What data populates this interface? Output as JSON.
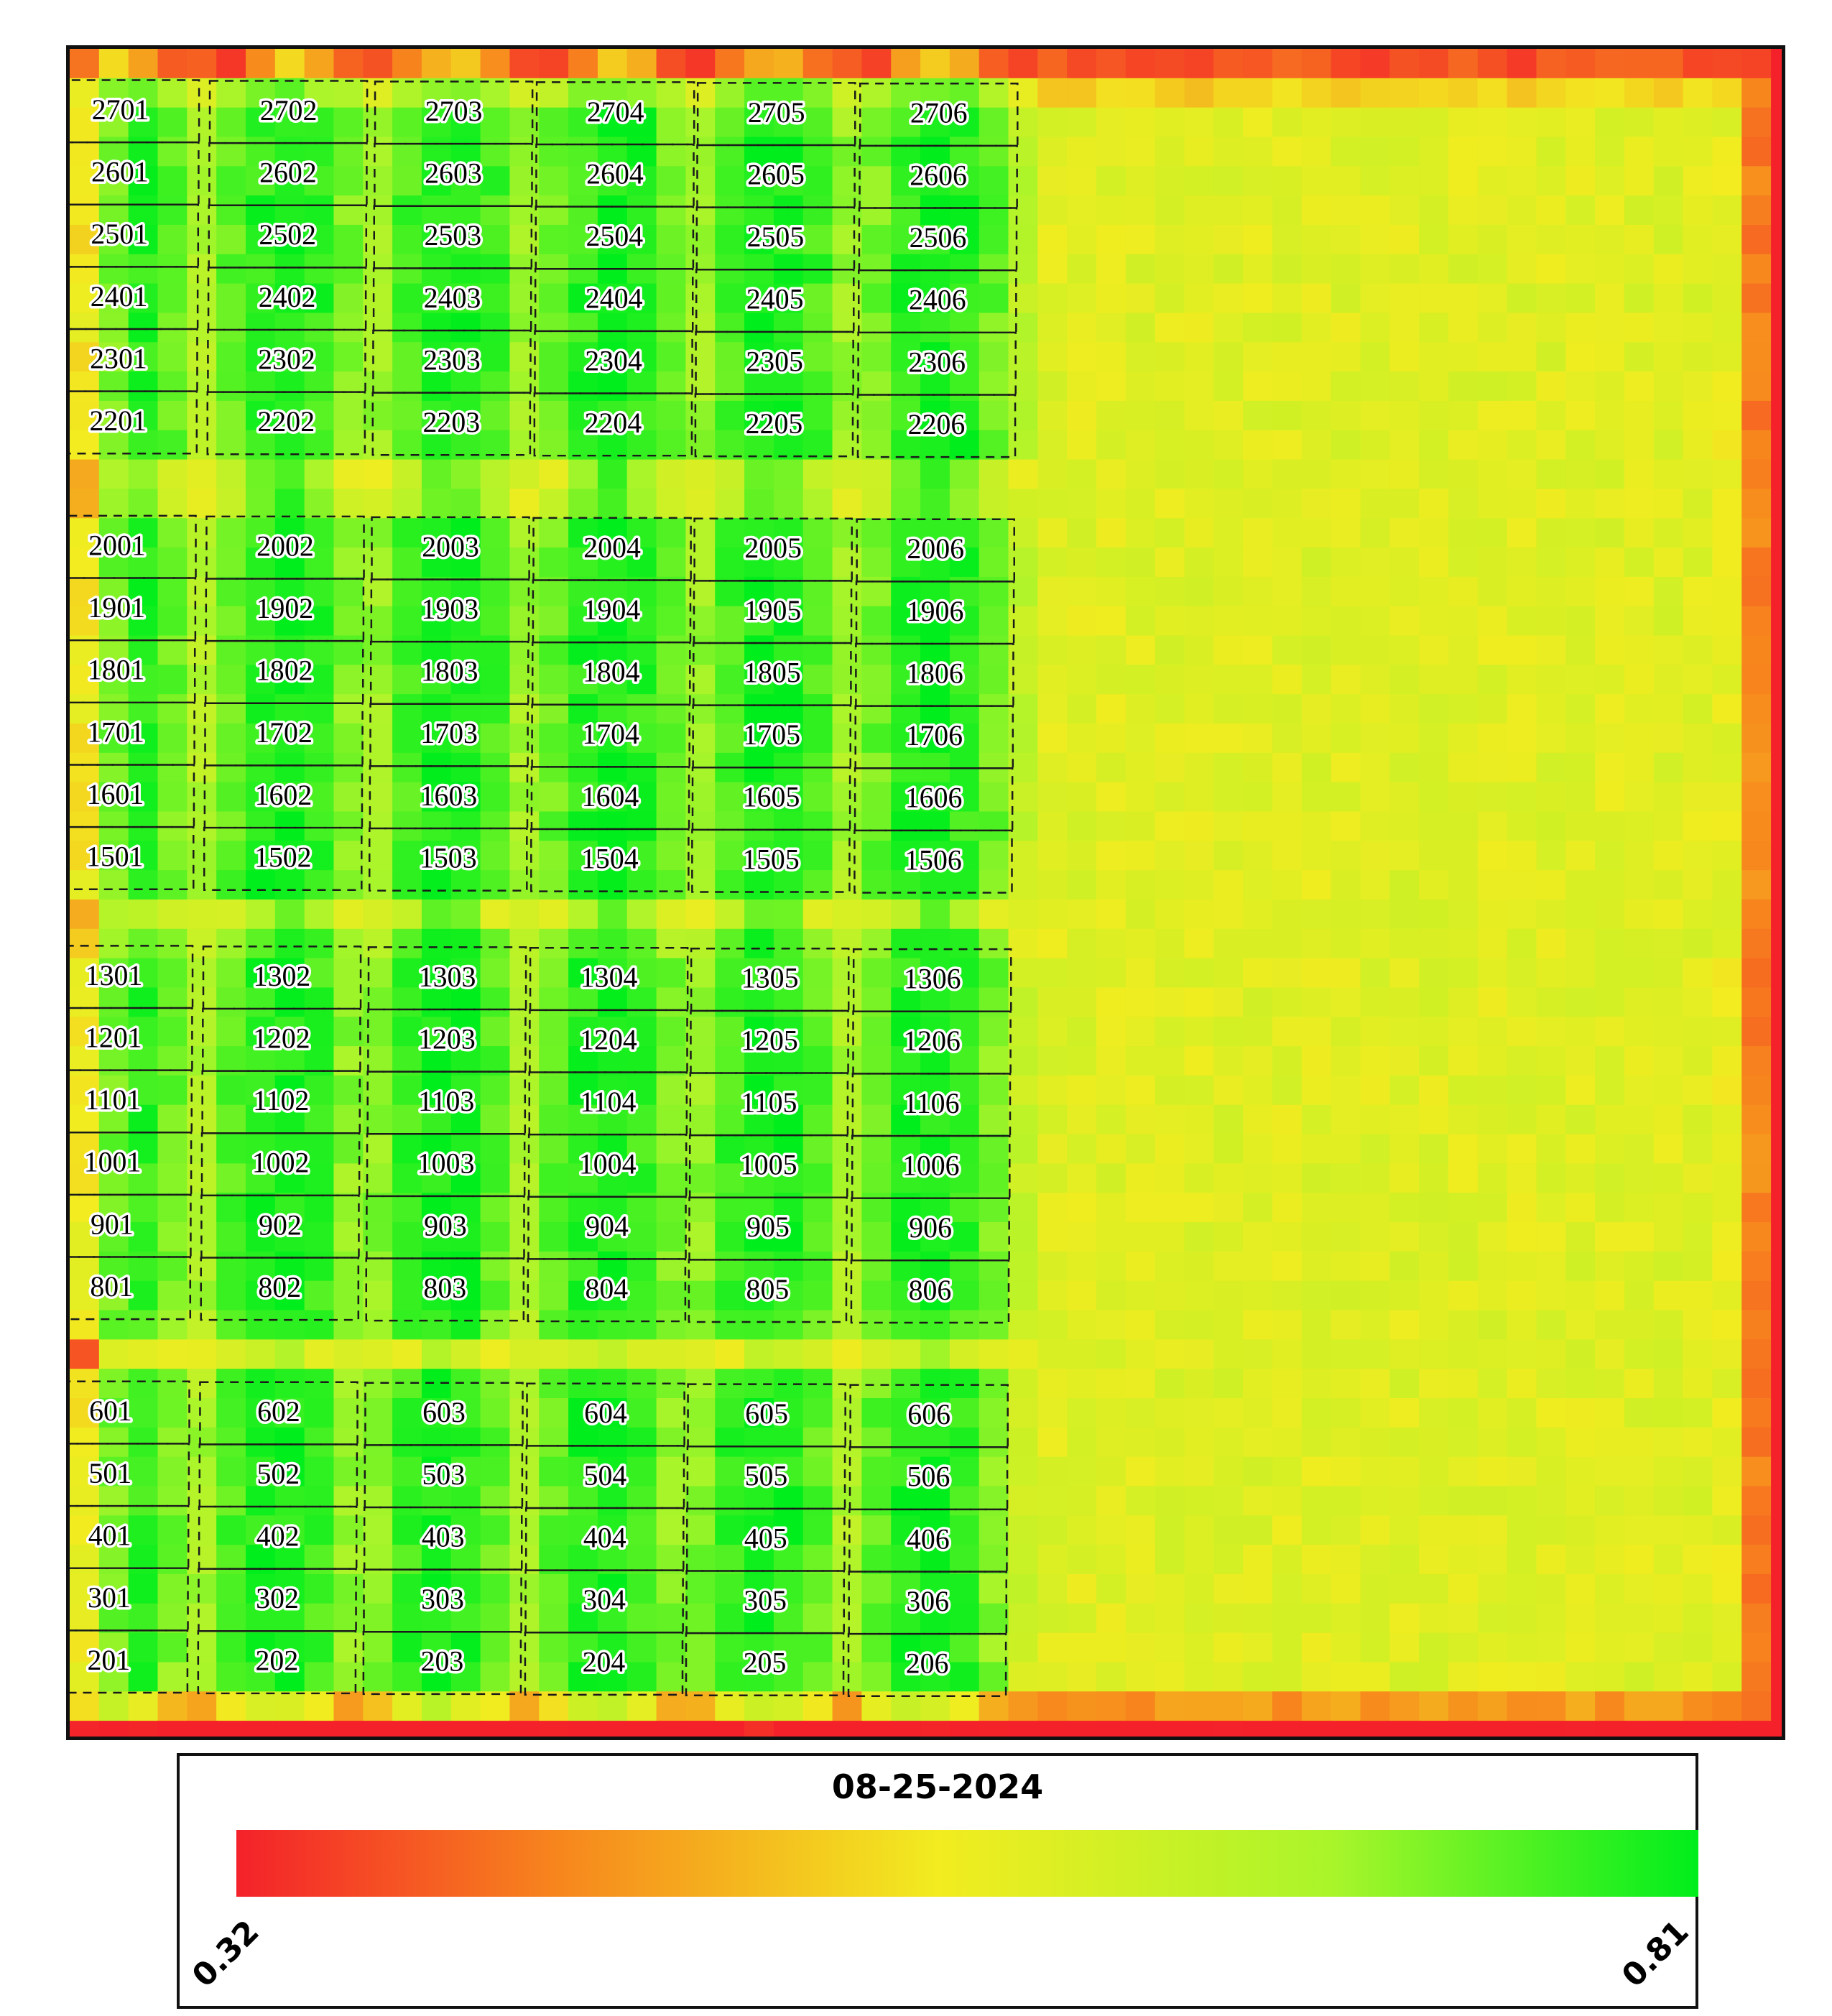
{
  "legend": {
    "title": "08-25-2024",
    "min_label": "0.32",
    "max_label": "0.81",
    "min_value": 0.32,
    "max_value": 0.81,
    "colors": [
      "#f4212a",
      "#f7861d",
      "#f2ec20",
      "#a9f52a",
      "#00ee1c"
    ]
  },
  "plots": [
    [
      "2701",
      "2702",
      "2703",
      "2704",
      "2705",
      "2706"
    ],
    [
      "2601",
      "2602",
      "2603",
      "2604",
      "2605",
      "2606"
    ],
    [
      "2501",
      "2502",
      "2503",
      "2504",
      "2505",
      "2506"
    ],
    [
      "2401",
      "2402",
      "2403",
      "2404",
      "2405",
      "2406"
    ],
    [
      "2301",
      "2302",
      "2303",
      "2304",
      "2305",
      "2306"
    ],
    [
      "2201",
      "2202",
      "2203",
      "2204",
      "2205",
      "2206"
    ],
    [
      "2001",
      "2002",
      "2003",
      "2004",
      "2005",
      "2006"
    ],
    [
      "1901",
      "1902",
      "1903",
      "1904",
      "1905",
      "1906"
    ],
    [
      "1801",
      "1802",
      "1803",
      "1804",
      "1805",
      "1806"
    ],
    [
      "1701",
      "1702",
      "1703",
      "1704",
      "1705",
      "1706"
    ],
    [
      "1601",
      "1602",
      "1603",
      "1604",
      "1605",
      "1606"
    ],
    [
      "1501",
      "1502",
      "1503",
      "1504",
      "1505",
      "1506"
    ],
    [
      "1301",
      "1302",
      "1303",
      "1304",
      "1305",
      "1306"
    ],
    [
      "1201",
      "1202",
      "1203",
      "1204",
      "1205",
      "1206"
    ],
    [
      "1101",
      "1102",
      "1103",
      "1104",
      "1105",
      "1106"
    ],
    [
      "1001",
      "1002",
      "1003",
      "1004",
      "1005",
      "1006"
    ],
    [
      "901",
      "902",
      "903",
      "904",
      "905",
      "906"
    ],
    [
      "801",
      "802",
      "803",
      "804",
      "805",
      "806"
    ],
    [
      "601",
      "602",
      "603",
      "604",
      "605",
      "606"
    ],
    [
      "501",
      "502",
      "503",
      "504",
      "505",
      "506"
    ],
    [
      "401",
      "402",
      "403",
      "404",
      "405",
      "406"
    ],
    [
      "301",
      "302",
      "303",
      "304",
      "305",
      "306"
    ],
    [
      "201",
      "202",
      "203",
      "204",
      "205",
      "206"
    ]
  ]
}
